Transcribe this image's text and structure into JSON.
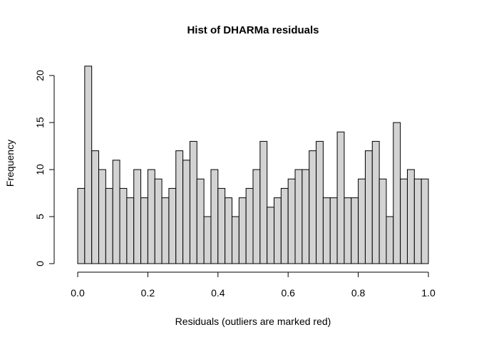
{
  "chart_data": {
    "type": "bar",
    "title": "Hist of DHARMa residuals",
    "xlabel": "Residuals (outliers are marked red)",
    "ylabel": "Frequency",
    "xlim": [
      0,
      1
    ],
    "ylim": [
      0,
      21
    ],
    "bin_width": 0.02,
    "x_ticks": [
      "0.0",
      "0.2",
      "0.4",
      "0.6",
      "0.8",
      "1.0"
    ],
    "y_ticks": [
      "0",
      "5",
      "10",
      "15",
      "20"
    ],
    "values": [
      8,
      21,
      12,
      10,
      8,
      11,
      8,
      7,
      10,
      7,
      10,
      9,
      7,
      8,
      12,
      11,
      13,
      9,
      5,
      10,
      8,
      7,
      5,
      7,
      8,
      10,
      13,
      6,
      7,
      8,
      9,
      10,
      10,
      12,
      13,
      7,
      7,
      14,
      7,
      7,
      9,
      12,
      13,
      9,
      5,
      15,
      9,
      10,
      9,
      9
    ],
    "bar_color": "#d3d3d3",
    "grid": false
  }
}
